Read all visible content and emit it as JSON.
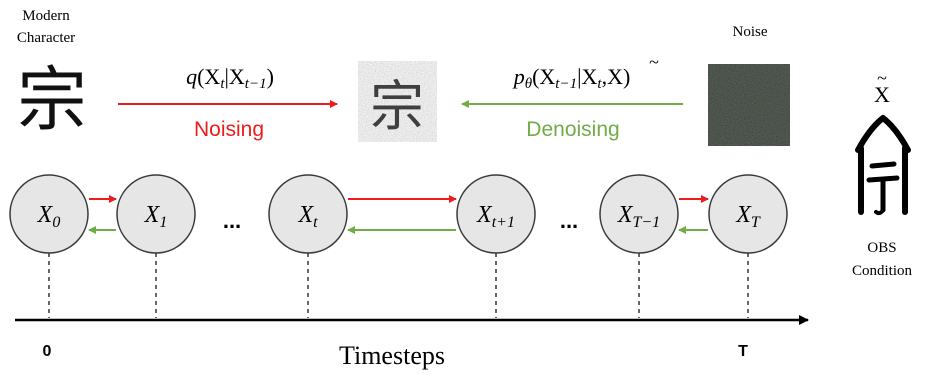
{
  "top": {
    "modern_label_line1": "Modern",
    "modern_label_line2": "Character",
    "modern_char": "宗",
    "noisy_char": "宗",
    "noise_label": "Noise",
    "forward_formula": {
      "q": "q",
      "open": "(",
      "x1": "X",
      "sub1": "t",
      "bar": "|",
      "x2": "X",
      "sub2": "t−1",
      "close": ")"
    },
    "reverse_formula": {
      "p": "p",
      "psub": "θ",
      "open": "(",
      "x1": "X",
      "sub1": "t−1",
      "bar": "|",
      "x2": "X",
      "sub2": "t",
      "comma": ",",
      "x3": "X",
      "tilde": "~",
      "close": ")"
    },
    "noising_label": "Noising",
    "denoising_label": "Denoising"
  },
  "nodes": [
    {
      "main": "X",
      "sub": "0"
    },
    {
      "main": "X",
      "sub": "1"
    },
    {
      "main": "X",
      "sub": "t"
    },
    {
      "main": "X",
      "sub": "t+1"
    },
    {
      "main": "X",
      "sub": "T−1"
    },
    {
      "main": "X",
      "sub": "T"
    }
  ],
  "ellipsis": [
    "...",
    "..."
  ],
  "axis": {
    "label": "Timesteps",
    "start_tick": "0",
    "end_tick": "T"
  },
  "condition": {
    "symbol": "X",
    "tilde": "~",
    "label_line1": "OBS",
    "label_line2": "Condition"
  },
  "colors": {
    "forward": "#ee1c1c",
    "reverse": "#70ad47",
    "node_fill": "#e6e6e6",
    "node_stroke": "#3a3a3a",
    "noising_text": "#ee1c1c",
    "denoising_text": "#70ad47"
  }
}
